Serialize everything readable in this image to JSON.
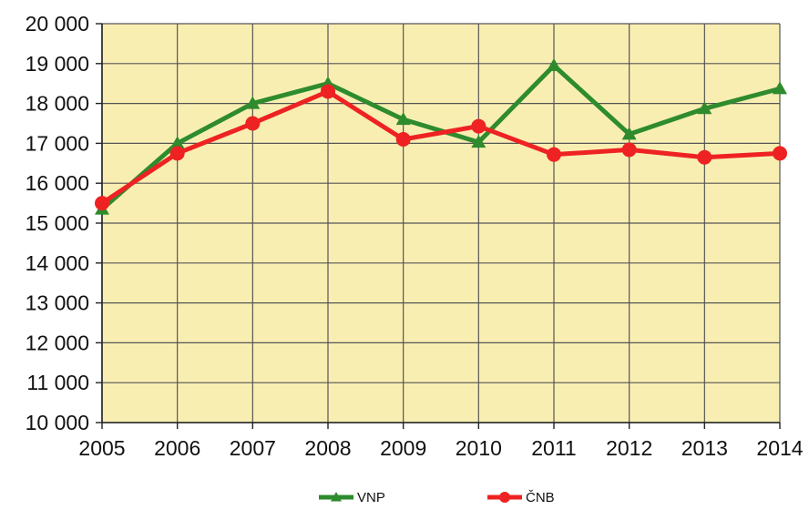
{
  "chart_data": {
    "type": "line",
    "title": "",
    "xlabel": "",
    "ylabel": "",
    "x": [
      "2005",
      "2006",
      "2007",
      "2008",
      "2009",
      "2010",
      "2011",
      "2012",
      "2013",
      "2014"
    ],
    "ylim": [
      10000,
      20000
    ],
    "y_ticks": [
      10000,
      11000,
      12000,
      13000,
      14000,
      15000,
      16000,
      17000,
      18000,
      19000,
      20000
    ],
    "y_tick_labels": [
      "10 000",
      "11 000",
      "12 000",
      "13 000",
      "14 000",
      "15 000",
      "16 000",
      "17 000",
      "18 000",
      "19 000",
      "20 000"
    ],
    "grid": true,
    "legend_position": "bottom",
    "series": [
      {
        "name": "VNP",
        "color": "#2e8b2e",
        "marker": "triangle",
        "values": [
          15350,
          17000,
          18000,
          18500,
          17600,
          17030,
          18950,
          17230,
          17870,
          18370
        ]
      },
      {
        "name": "ČNB",
        "color": "#ee2222",
        "marker": "circle",
        "values": [
          15500,
          16750,
          17500,
          18300,
          17100,
          17430,
          16720,
          16840,
          16650,
          16750
        ]
      }
    ],
    "plot_background": "#f9eeb2",
    "grid_color": "#555555"
  }
}
